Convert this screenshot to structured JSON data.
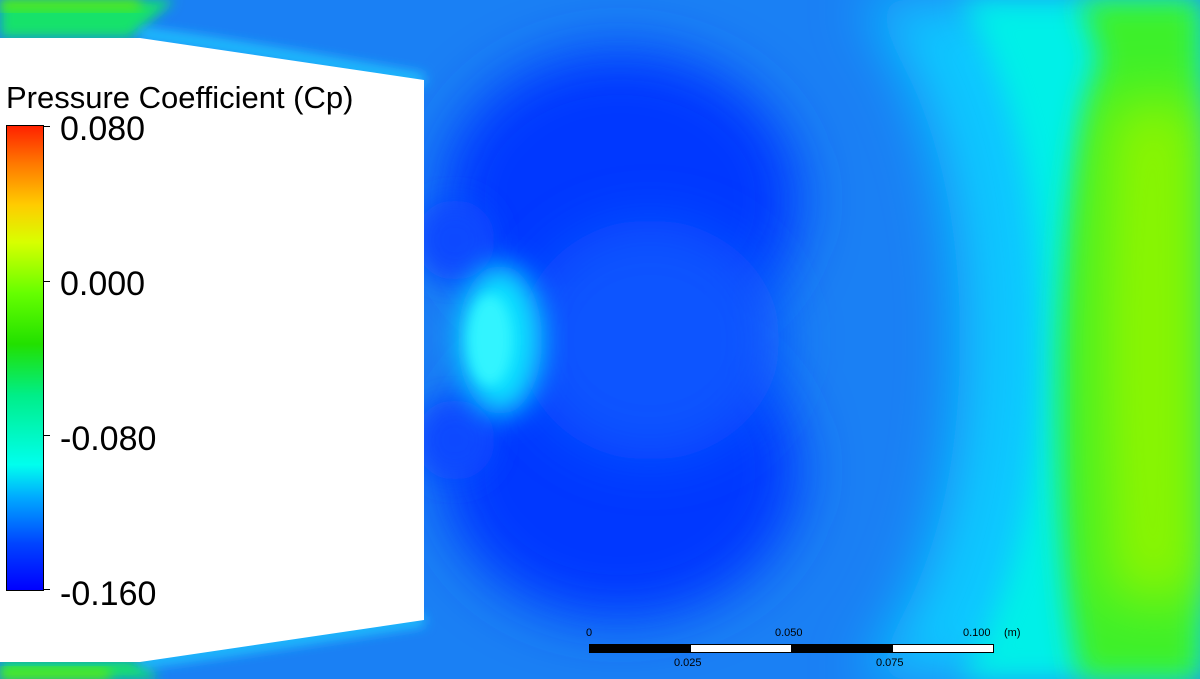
{
  "legend": {
    "title": "Pressure Coefficient (Cp)",
    "labels": [
      "0.080",
      "0.000",
      "-0.080",
      "-0.160"
    ]
  },
  "scale_bar": {
    "top_labels": [
      "0",
      "0.050",
      "0.100"
    ],
    "unit": "(m)",
    "bottom_labels": [
      "0.025",
      "0.075"
    ]
  },
  "colors": {
    "colormap": [
      "#0000ff",
      "#0044ff",
      "#00aaff",
      "#00ffee",
      "#00ee88",
      "#22e000",
      "#66ff00",
      "#d8ff00",
      "#ffcc00",
      "#ff7700",
      "#ff2200"
    ],
    "body": "#ffffff",
    "field_low": "#0033ff",
    "field_mid": "#00e5ff",
    "field_high": "#66ff00"
  }
}
